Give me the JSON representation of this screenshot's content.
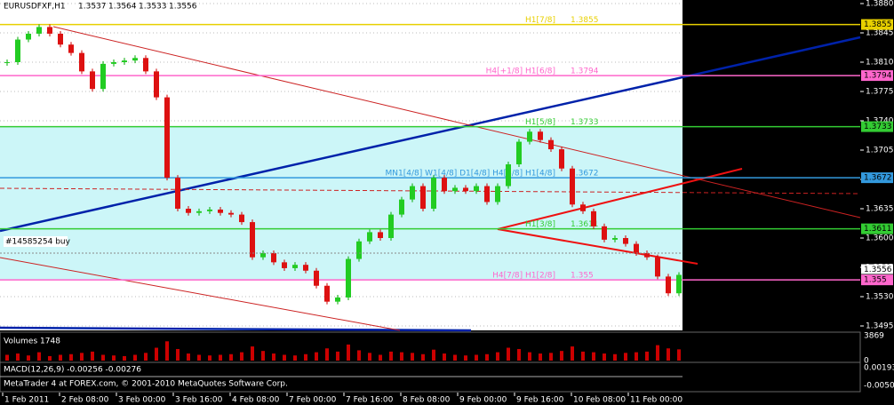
{
  "header": {
    "symbol": "EURUSDFXF,H1",
    "open": 1.3537,
    "high": 1.3564,
    "low": 1.3533,
    "close": 1.3556
  },
  "price_axis": {
    "ylim": [
      1.388,
      1.3495
    ],
    "ticks": [
      {
        "value": 1.388,
        "label": "1.3880"
      },
      {
        "value": 1.3845,
        "label": "1.3845"
      },
      {
        "value": 1.381,
        "label": "1.3810"
      },
      {
        "value": 1.3775,
        "label": "1.3775"
      },
      {
        "value": 1.374,
        "label": "1.3740"
      },
      {
        "value": 1.3705,
        "label": "1.3705"
      },
      {
        "value": 1.367,
        "label": "1.3670"
      },
      {
        "value": 1.3635,
        "label": "1.3635"
      },
      {
        "value": 1.36,
        "label": "1.3600"
      },
      {
        "value": 1.3565,
        "label": "1.3565"
      },
      {
        "value": 1.353,
        "label": "1.3530"
      },
      {
        "value": 1.3495,
        "label": "1.3495"
      }
    ]
  },
  "levels": [
    {
      "label": "H1[7/8]",
      "price": 1.3855,
      "color": "#e8d000"
    },
    {
      "label": "H4[+1/8] H1[6/8]",
      "price": 1.3794,
      "color": "#ff66cc"
    },
    {
      "label": "H1[5/8]",
      "price": 1.3733,
      "color": "#33cc33"
    },
    {
      "label": "MN1[4/8] W1[4/8] D1[4/8] H4[3/8] H1[4/8]",
      "price": 1.3672,
      "color": "#3399dd"
    },
    {
      "label": "H1[3/8]",
      "price": 1.3611,
      "color": "#33cc33"
    },
    {
      "label": "H4[7/8] H1[2/8]",
      "price": 1.355,
      "color": "#ff66cc"
    }
  ],
  "order": {
    "label": "#14585254 buy"
  },
  "time_axis": [
    "1 Feb 2011",
    "2 Feb 08:00",
    "3 Feb 00:00",
    "3 Feb 16:00",
    "4 Feb 08:00",
    "7 Feb 00:00",
    "7 Feb 16:00",
    "8 Feb 08:00",
    "9 Feb 00:00",
    "9 Feb 16:00",
    "10 Feb 08:00",
    "11 Feb 00:00"
  ],
  "candles": {
    "close": [
      1.381,
      1.3837,
      1.3844,
      1.3852,
      1.3844,
      1.3831,
      1.3821,
      1.3799,
      1.3778,
      1.3808,
      1.381,
      1.3812,
      1.3815,
      1.3799,
      1.3768,
      1.3672,
      1.3635,
      1.363,
      1.3632,
      1.3634,
      1.363,
      1.3628,
      1.3619,
      1.3577,
      1.3582,
      1.3571,
      1.3564,
      1.3568,
      1.3561,
      1.3543,
      1.3524,
      1.3529,
      1.3575,
      1.3596,
      1.3607,
      1.36,
      1.3628,
      1.3646,
      1.3662,
      1.3635,
      1.3672,
      1.3656,
      1.366,
      1.3656,
      1.3662,
      1.3643,
      1.3662,
      1.3688,
      1.3715,
      1.3727,
      1.3717,
      1.3706,
      1.3683,
      1.364,
      1.3632,
      1.3614,
      1.3598,
      1.36,
      1.3593,
      1.3582,
      1.3577,
      1.3554,
      1.3534,
      1.3556
    ]
  },
  "volumes": {
    "title": "Volumes 1748",
    "ylim": [
      0,
      3869
    ],
    "ticks": [
      3869,
      0
    ],
    "values": [
      900,
      1100,
      800,
      1300,
      700,
      900,
      1000,
      1200,
      1400,
      900,
      800,
      700,
      900,
      1200,
      2000,
      3000,
      1800,
      1100,
      900,
      800,
      900,
      1000,
      1300,
      2200,
      1500,
      1100,
      900,
      800,
      1000,
      1300,
      1900,
      1400,
      2500,
      1600,
      1200,
      900,
      1400,
      1300,
      1200,
      1000,
      1700,
      1100,
      900,
      800,
      900,
      1000,
      1300,
      2000,
      1800,
      1300,
      1100,
      1200,
      1500,
      2200,
      1400,
      1300,
      1100,
      1000,
      1200,
      1300,
      1400,
      2400,
      1900,
      1748
    ]
  },
  "macd": {
    "title": "MACD(12,26,9) -0.00256 -0.00276",
    "ticks": [
      "0.00193",
      "-0.00502"
    ]
  },
  "footer": "MetaTrader 4 at FOREX.com, © 2001-2010 MetaQuotes Software Corp."
}
